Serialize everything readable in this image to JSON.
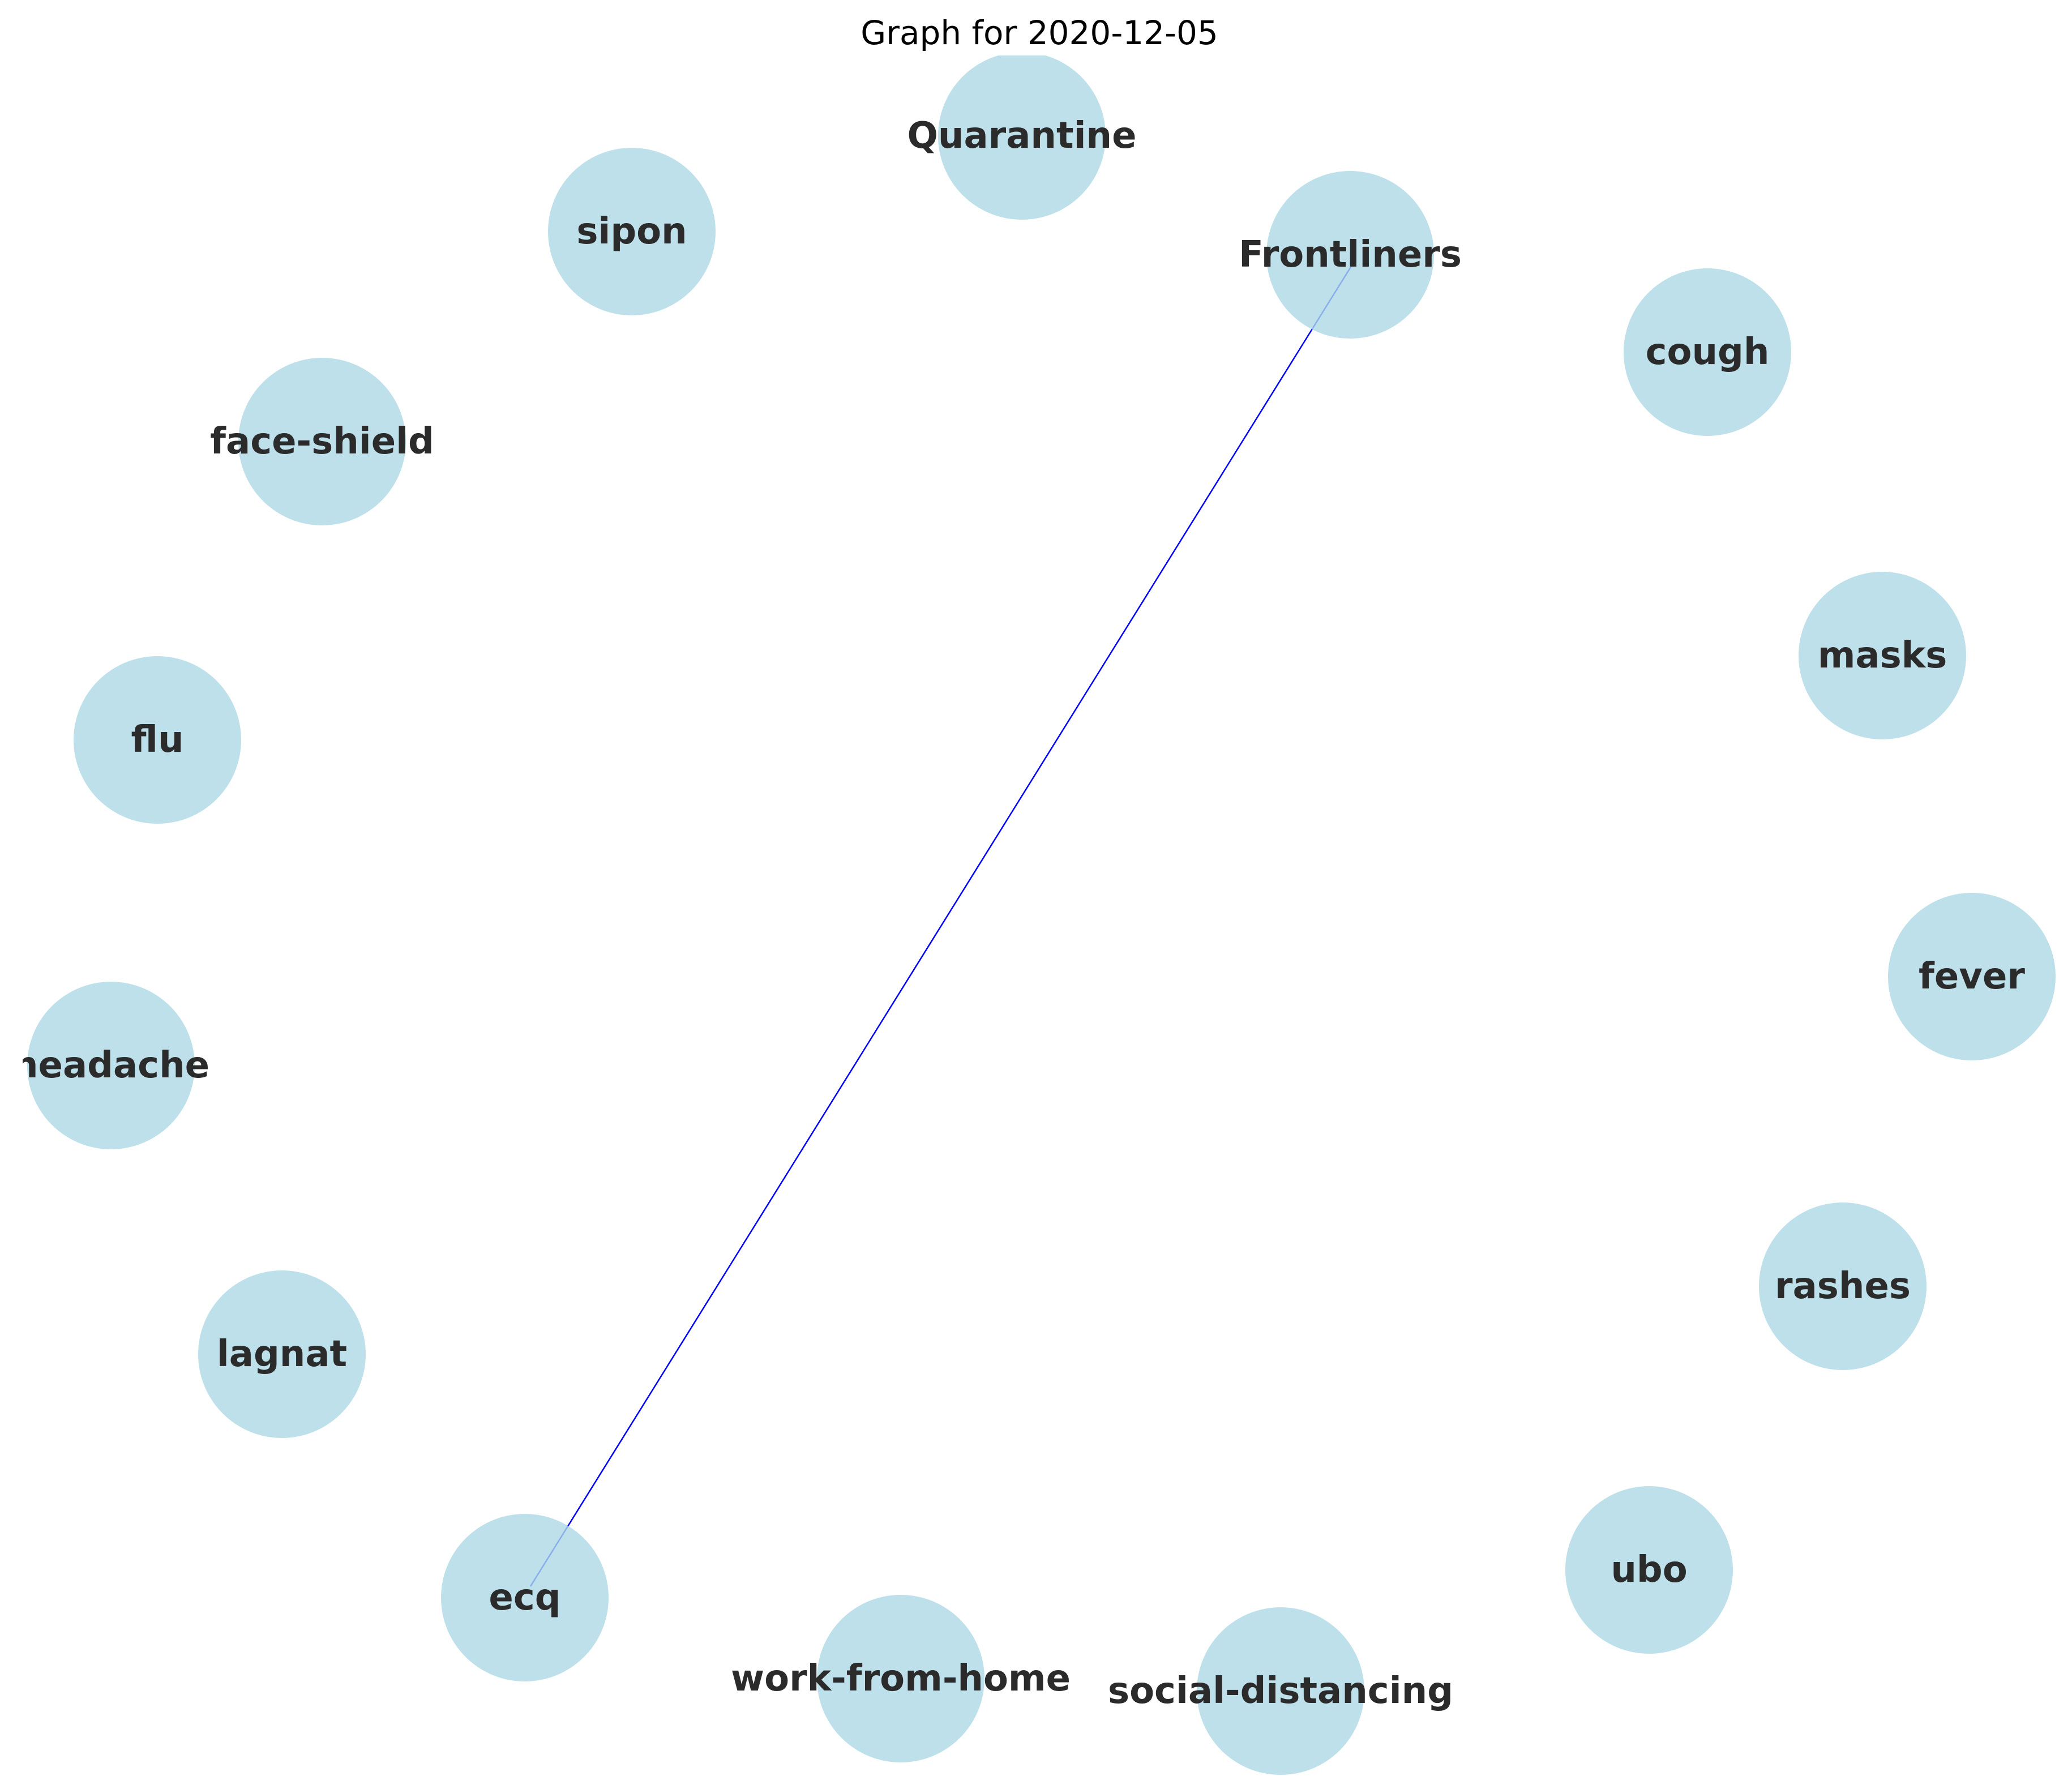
{
  "title": "Graph for 2020-12-05",
  "node_color": "#add8e6",
  "edge_color": "#0000ff",
  "nodes": [
    {
      "id": "quarantine",
      "label": "Quarantine"
    },
    {
      "id": "frontliners",
      "label": "Frontliners"
    },
    {
      "id": "cough",
      "label": "cough"
    },
    {
      "id": "masks",
      "label": "masks"
    },
    {
      "id": "fever",
      "label": "fever"
    },
    {
      "id": "rashes",
      "label": "rashes"
    },
    {
      "id": "ubo",
      "label": "ubo"
    },
    {
      "id": "social-distancing",
      "label": "social-distancing"
    },
    {
      "id": "work-from-home",
      "label": "work-from-home"
    },
    {
      "id": "ecq",
      "label": "ecq"
    },
    {
      "id": "lagnat",
      "label": "lagnat"
    },
    {
      "id": "headache",
      "label": "headache"
    },
    {
      "id": "flu",
      "label": "flu"
    },
    {
      "id": "face-shield",
      "label": "face-shield"
    },
    {
      "id": "sipon",
      "label": "sipon"
    }
  ],
  "edges": [
    {
      "source": "frontliners",
      "target": "ecq"
    }
  ]
}
